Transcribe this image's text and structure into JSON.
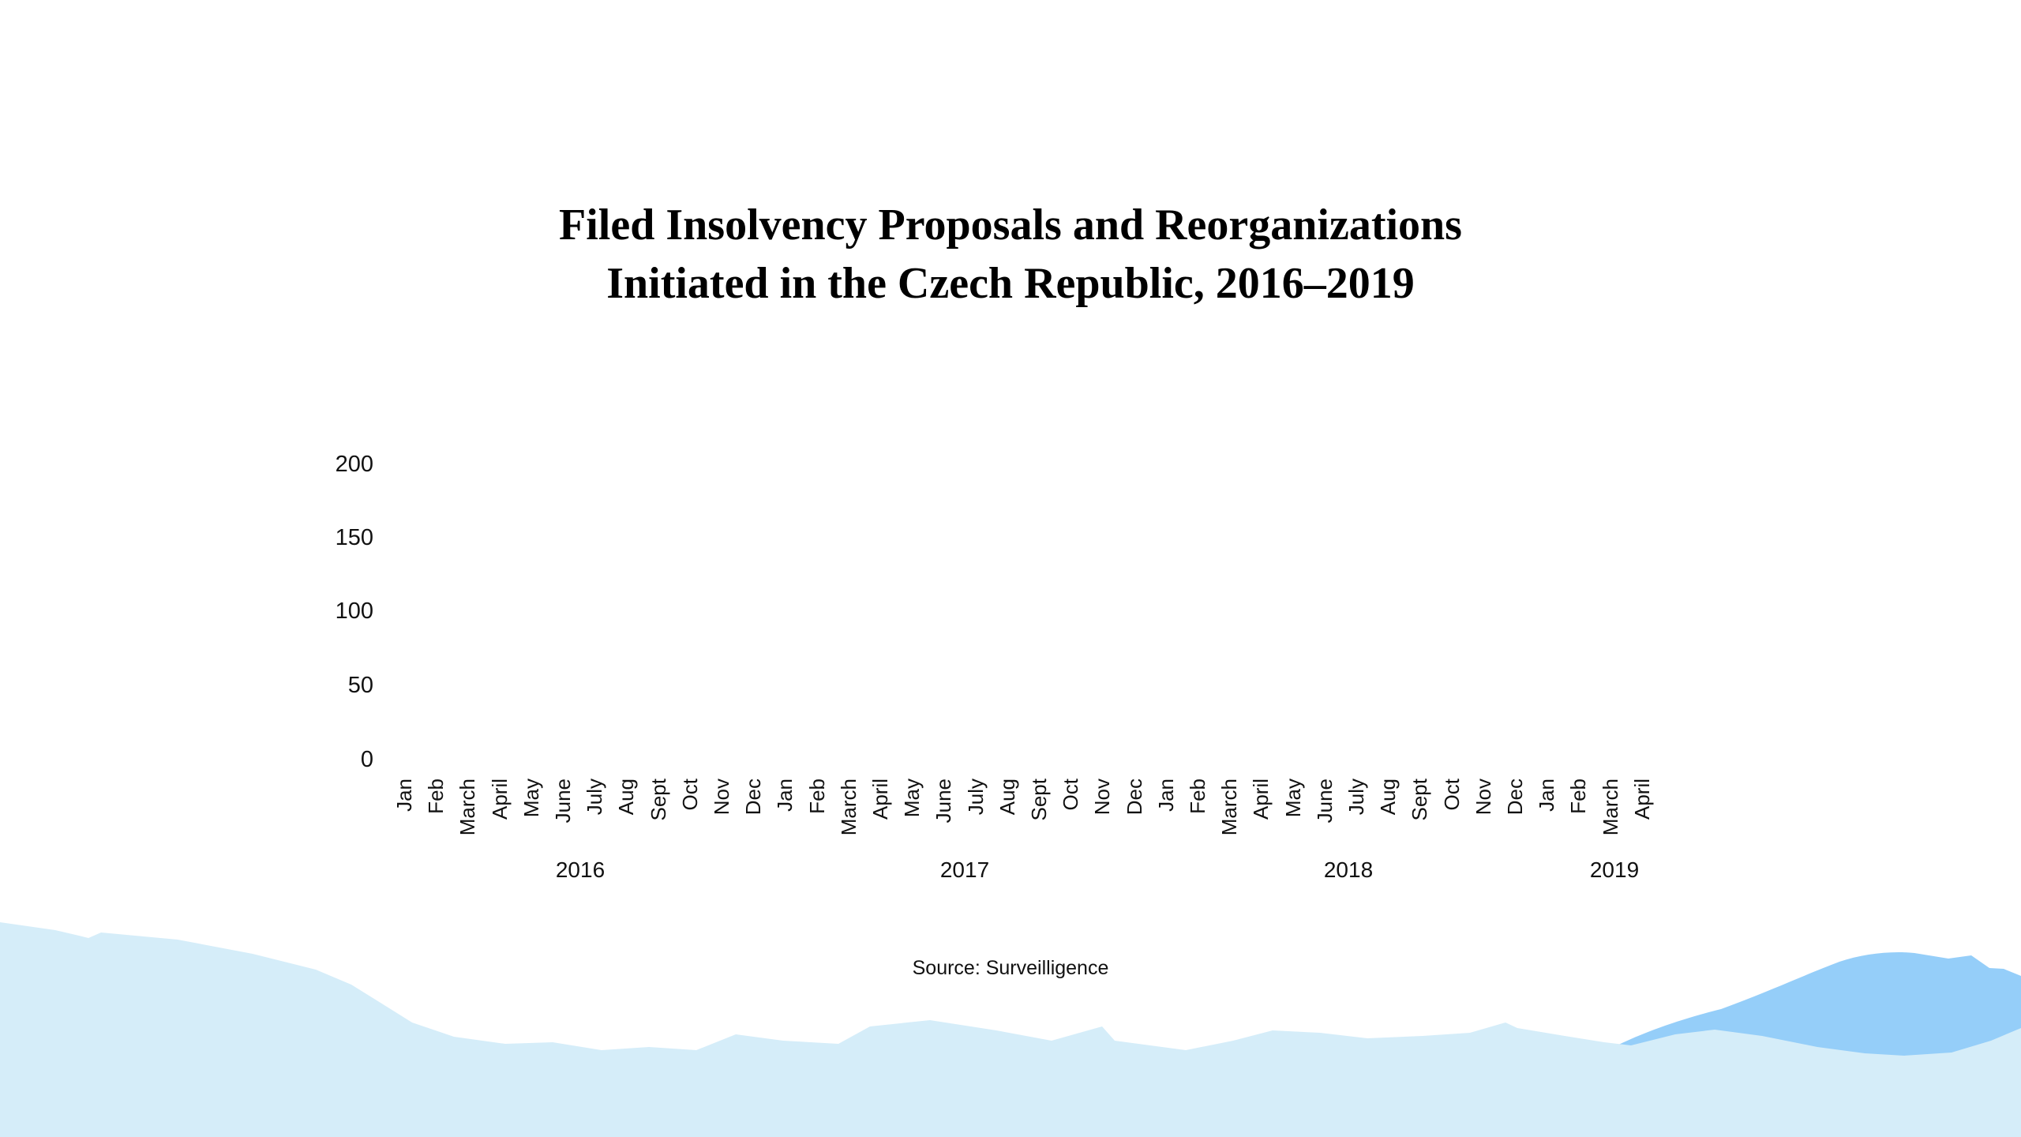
{
  "header": {
    "title_line1": "Filed Insolvency Proposals and Reorganizations",
    "title_line2": "Initiated in the Czech Republic, 2016–2019"
  },
  "footer": {
    "source": "Source: Surveilligence"
  },
  "colors": {
    "text": "#000000",
    "wave_light": "#d5edf9",
    "wave_dark": "#95cef9"
  },
  "chart_data": {
    "type": "bar",
    "title": "Filed Insolvency Proposals and Reorganizations Initiated in the Czech Republic, 2016–2019",
    "xlabel": "",
    "ylabel": "",
    "ylim": [
      0,
      200
    ],
    "yticks": [
      0,
      50,
      100,
      150,
      200
    ],
    "grid": false,
    "legend": false,
    "x_groups": [
      {
        "year": "2016",
        "months": [
          "Jan",
          "Feb",
          "March",
          "April",
          "May",
          "June",
          "July",
          "Aug",
          "Sept",
          "Oct",
          "Nov",
          "Dec"
        ]
      },
      {
        "year": "2017",
        "months": [
          "Jan",
          "Feb",
          "March",
          "April",
          "May",
          "June",
          "July",
          "Aug",
          "Sept",
          "Oct",
          "Nov",
          "Dec"
        ]
      },
      {
        "year": "2018",
        "months": [
          "Jan",
          "Feb",
          "March",
          "April",
          "May",
          "June",
          "July",
          "Aug",
          "Sept",
          "Oct",
          "Nov",
          "Dec"
        ]
      },
      {
        "year": "2019",
        "months": [
          "Jan",
          "Feb",
          "March",
          "April"
        ]
      }
    ],
    "series": [],
    "note_values_rendered": "none"
  }
}
